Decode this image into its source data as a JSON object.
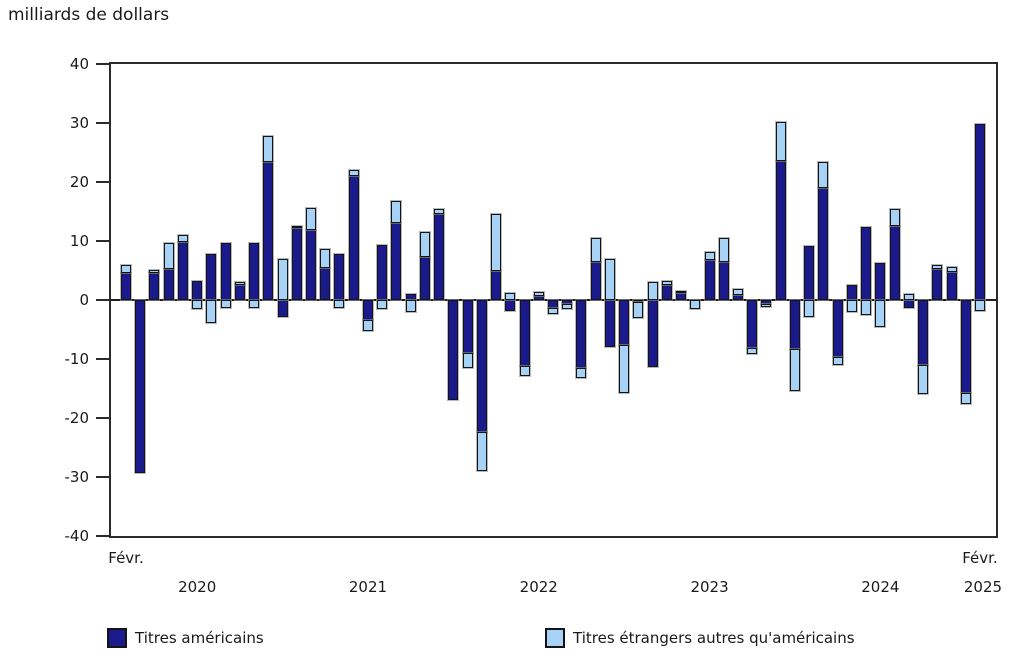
{
  "title": "milliards de dollars",
  "chart_data": {
    "type": "bar",
    "stacked": true,
    "title": "milliards de dollars",
    "xlabel": "",
    "ylabel": "milliards de dollars",
    "ylim": [
      -40,
      40
    ],
    "yticks": [
      40,
      30,
      20,
      10,
      0,
      -10,
      -20,
      -30,
      -40
    ],
    "grid": false,
    "legend_position": "bottom",
    "x_axis": {
      "first_label": "Févr.",
      "last_label_line1": "Févr.",
      "last_label_line2": "2025",
      "year_labels": [
        "2020",
        "2021",
        "2022",
        "2023",
        "2024"
      ]
    },
    "categories": [
      "févr. 2020",
      "mars 2020",
      "avr. 2020",
      "mai 2020",
      "juin 2020",
      "juil. 2020",
      "août 2020",
      "sept. 2020",
      "oct. 2020",
      "nov. 2020",
      "déc. 2020",
      "janv. 2021",
      "févr. 2021",
      "mars 2021",
      "avr. 2021",
      "mai 2021",
      "juin 2021",
      "juil. 2021",
      "août 2021",
      "sept. 2021",
      "oct. 2021",
      "nov. 2021",
      "déc. 2021",
      "janv. 2022",
      "févr. 2022",
      "mars 2022",
      "avr. 2022",
      "mai 2022",
      "juin 2022",
      "juil. 2022",
      "août 2022",
      "sept. 2022",
      "oct. 2022",
      "nov. 2022",
      "déc. 2022",
      "janv. 2023",
      "févr. 2023",
      "mars 2023",
      "avr. 2023",
      "mai 2023",
      "juin 2023",
      "juil. 2023",
      "août 2023",
      "sept. 2023",
      "oct. 2023",
      "nov. 2023",
      "déc. 2023",
      "janv. 2024",
      "févr. 2024",
      "mars 2024",
      "avr. 2024",
      "mai 2024",
      "juin 2024",
      "juil. 2024",
      "août 2024",
      "sept. 2024",
      "oct. 2024",
      "nov. 2024",
      "déc. 2024",
      "janv. 2025",
      "févr. 2025"
    ],
    "series": [
      {
        "name": "Titres américains",
        "color": "#1A1A8C",
        "values": [
          4.6,
          -29.3,
          4.6,
          5.2,
          9.8,
          3.3,
          7.8,
          9.7,
          2.5,
          9.7,
          23.4,
          -2.8,
          12.2,
          11.8,
          5.5,
          7.8,
          21.1,
          -3.4,
          9.3,
          13.1,
          1.0,
          7.3,
          14.6,
          -16.9,
          -9.0,
          -22.3,
          4.9,
          -1.9,
          -11.2,
          0.7,
          -1.4,
          -0.7,
          -11.5,
          6.5,
          -8.0,
          -7.6,
          -0.4,
          -11.4,
          2.6,
          1.3,
          0.0,
          6.8,
          6.5,
          0.8,
          -8.2,
          -0.6,
          23.6,
          -8.3,
          9.1,
          18.9,
          -9.6,
          2.5,
          12.4,
          6.3,
          12.6,
          -1.4,
          -11.0,
          5.3,
          4.8,
          -15.7,
          29.8
        ]
      },
      {
        "name": "Titres étrangers autres qu'américains",
        "color": "#A6D2F5",
        "values": [
          1.4,
          0.0,
          0.5,
          4.5,
          1.3,
          -1.6,
          -3.9,
          -1.4,
          0.5,
          -1.4,
          4.4,
          7.0,
          0.3,
          3.8,
          3.1,
          -1.4,
          1.0,
          -1.9,
          -1.5,
          3.6,
          -2.0,
          4.2,
          0.9,
          0.0,
          -2.5,
          -6.6,
          9.7,
          1.2,
          -1.7,
          0.6,
          -1.0,
          -0.9,
          -1.7,
          4.0,
          7.0,
          -8.1,
          -2.6,
          3.0,
          0.6,
          0.2,
          -1.6,
          1.4,
          4.0,
          1.0,
          -0.9,
          -0.6,
          6.6,
          -7.2,
          -2.8,
          4.5,
          -1.4,
          -2.1,
          -2.5,
          -4.5,
          2.9,
          1.1,
          -5.0,
          0.6,
          0.8,
          -2.0,
          -1.9
        ]
      }
    ]
  }
}
